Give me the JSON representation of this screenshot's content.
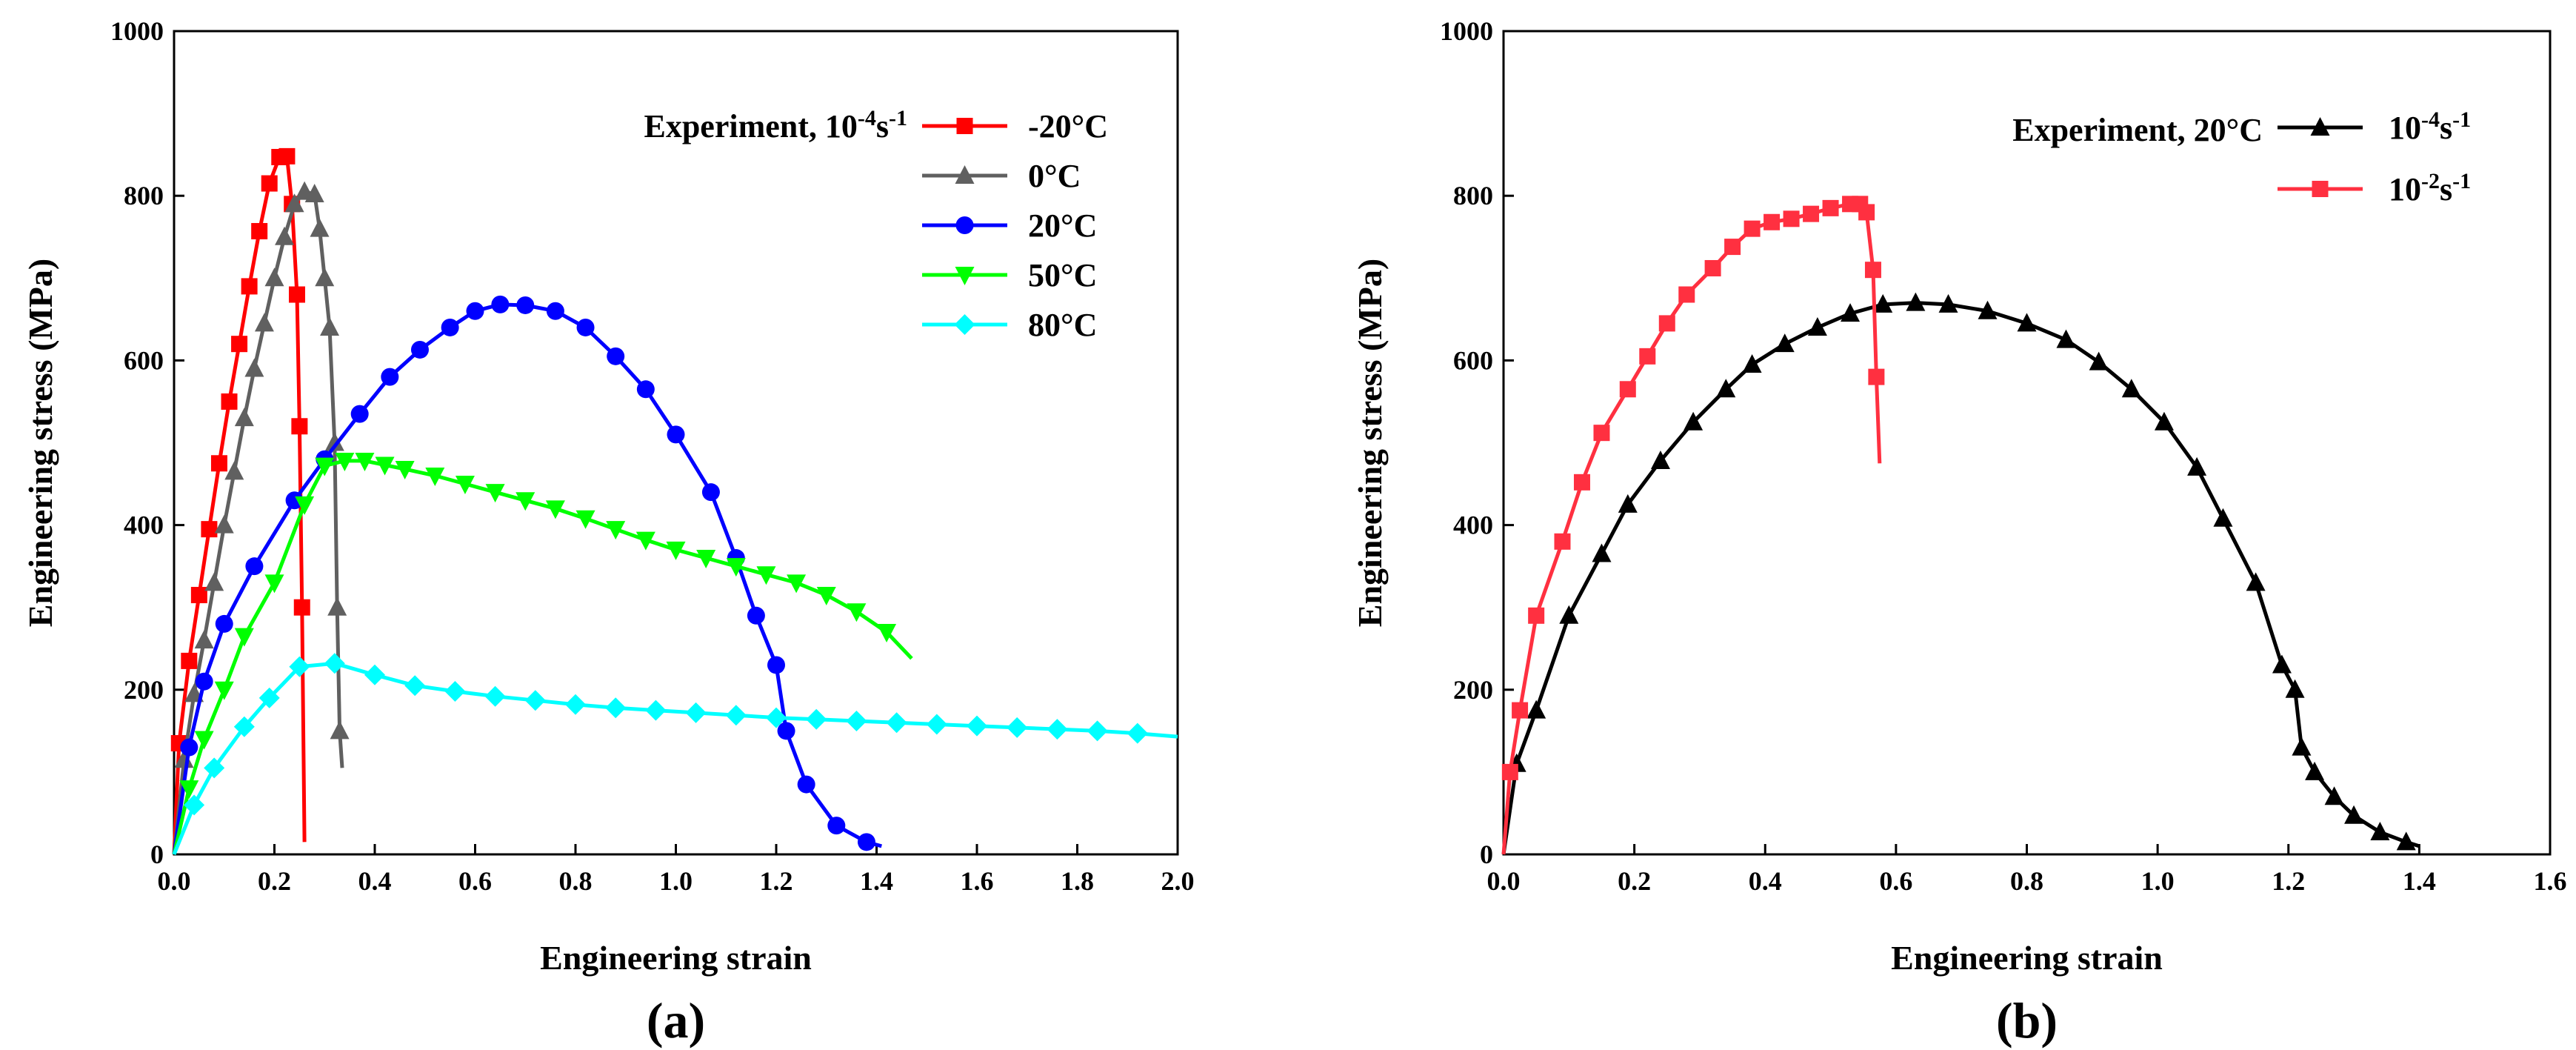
{
  "chart_data": [
    {
      "type": "line",
      "panel_label": "(a)",
      "xlabel": "Engineering strain",
      "ylabel": "Engineering stress (MPa)",
      "xlim": [
        0,
        2.0
      ],
      "ylim": [
        0,
        1000
      ],
      "xticks": [
        "0.0",
        "0.2",
        "0.4",
        "0.6",
        "0.8",
        "1.0",
        "1.2",
        "1.4",
        "1.6",
        "1.8",
        "2.0"
      ],
      "yticks": [
        "0",
        "200",
        "400",
        "600",
        "800",
        "1000"
      ],
      "legend_title_parts": [
        "Experiment, 10",
        "-4",
        "s",
        "-1"
      ],
      "legend_placement": "top-right",
      "series": [
        {
          "name": "-20°C",
          "color": "#ff0000",
          "marker": "square",
          "x": [
            0,
            0.01,
            0.03,
            0.05,
            0.07,
            0.09,
            0.11,
            0.13,
            0.15,
            0.17,
            0.19,
            0.21,
            0.225,
            0.235,
            0.245,
            0.25,
            0.255,
            0.26
          ],
          "y": [
            0,
            135,
            235,
            315,
            395,
            475,
            550,
            620,
            690,
            757,
            815,
            847,
            848,
            790,
            680,
            520,
            300,
            15
          ]
        },
        {
          "name": "0°C",
          "color": "#606060",
          "marker": "triangle-up",
          "x": [
            0,
            0.02,
            0.04,
            0.06,
            0.08,
            0.1,
            0.12,
            0.14,
            0.16,
            0.18,
            0.2,
            0.22,
            0.24,
            0.26,
            0.28,
            0.29,
            0.3,
            0.31,
            0.32,
            0.325,
            0.33,
            0.335
          ],
          "y": [
            0,
            115,
            195,
            260,
            330,
            400,
            465,
            530,
            590,
            645,
            700,
            750,
            790,
            805,
            802,
            760,
            700,
            640,
            500,
            300,
            150,
            105
          ]
        },
        {
          "name": "20°C",
          "color": "#0000ff",
          "marker": "circle",
          "x": [
            0,
            0.03,
            0.06,
            0.1,
            0.16,
            0.24,
            0.3,
            0.37,
            0.43,
            0.49,
            0.55,
            0.6,
            0.65,
            0.7,
            0.76,
            0.82,
            0.88,
            0.94,
            1.0,
            1.07,
            1.12,
            1.16,
            1.2,
            1.22,
            1.26,
            1.32,
            1.38,
            1.41
          ],
          "y": [
            0,
            130,
            210,
            280,
            350,
            430,
            480,
            535,
            580,
            613,
            640,
            660,
            668,
            667,
            660,
            640,
            605,
            565,
            510,
            440,
            360,
            290,
            230,
            150,
            85,
            35,
            15,
            10
          ]
        },
        {
          "name": "50°C",
          "color": "#00ff00",
          "marker": "triangle-down",
          "x": [
            0,
            0.03,
            0.06,
            0.1,
            0.14,
            0.2,
            0.26,
            0.3,
            0.34,
            0.38,
            0.42,
            0.46,
            0.52,
            0.58,
            0.64,
            0.7,
            0.76,
            0.82,
            0.88,
            0.94,
            1.0,
            1.06,
            1.12,
            1.18,
            1.24,
            1.3,
            1.36,
            1.42,
            1.47
          ],
          "y": [
            0,
            80,
            140,
            200,
            265,
            330,
            425,
            472,
            478,
            478,
            473,
            468,
            460,
            450,
            440,
            430,
            420,
            408,
            395,
            382,
            370,
            360,
            350,
            340,
            330,
            315,
            295,
            270,
            238
          ]
        },
        {
          "name": "80°C",
          "color": "#00ffff",
          "marker": "diamond",
          "x": [
            0,
            0.04,
            0.08,
            0.14,
            0.19,
            0.25,
            0.32,
            0.4,
            0.48,
            0.56,
            0.64,
            0.72,
            0.8,
            0.88,
            0.96,
            1.04,
            1.12,
            1.2,
            1.28,
            1.36,
            1.44,
            1.52,
            1.6,
            1.68,
            1.76,
            1.84,
            1.92,
            2.0
          ],
          "y": [
            0,
            60,
            105,
            155,
            190,
            228,
            232,
            218,
            205,
            198,
            192,
            187,
            182,
            178,
            175,
            172,
            169,
            166,
            164,
            162,
            160,
            158,
            156,
            154,
            152,
            150,
            147,
            143
          ]
        }
      ]
    },
    {
      "type": "line",
      "panel_label": "(b)",
      "xlabel": "Engineering strain",
      "ylabel": "Engineering stress (MPa)",
      "xlim": [
        0,
        1.6
      ],
      "ylim": [
        0,
        1000
      ],
      "xticks": [
        "0.0",
        "0.2",
        "0.4",
        "0.6",
        "0.8",
        "1.0",
        "1.2",
        "1.4",
        "1.6"
      ],
      "yticks": [
        "0",
        "200",
        "400",
        "600",
        "800",
        "1000"
      ],
      "legend_title": "Experiment, 20°C",
      "legend_placement": "top-right",
      "series": [
        {
          "name_parts": [
            "10",
            "-4",
            "s",
            "-1"
          ],
          "color": "#000000",
          "marker": "triangle-up",
          "x": [
            0,
            0.02,
            0.05,
            0.1,
            0.15,
            0.19,
            0.24,
            0.29,
            0.34,
            0.38,
            0.43,
            0.48,
            0.53,
            0.58,
            0.63,
            0.68,
            0.74,
            0.8,
            0.86,
            0.91,
            0.96,
            1.01,
            1.06,
            1.1,
            1.15,
            1.19,
            1.21,
            1.22,
            1.24,
            1.27,
            1.3,
            1.34,
            1.38,
            1.4
          ],
          "y": [
            0,
            110,
            175,
            290,
            365,
            425,
            478,
            525,
            565,
            595,
            620,
            640,
            657,
            668,
            670,
            668,
            660,
            645,
            625,
            598,
            565,
            525,
            470,
            408,
            330,
            230,
            200,
            130,
            100,
            70,
            47,
            27,
            15,
            10
          ]
        },
        {
          "name_parts": [
            "10",
            "-2",
            "s",
            "-1"
          ],
          "color": "#ff3040",
          "marker": "square",
          "x": [
            0,
            0.01,
            0.025,
            0.05,
            0.09,
            0.12,
            0.15,
            0.19,
            0.22,
            0.25,
            0.28,
            0.32,
            0.35,
            0.38,
            0.41,
            0.44,
            0.47,
            0.5,
            0.53,
            0.545,
            0.555,
            0.565,
            0.57,
            0.575
          ],
          "y": [
            0,
            100,
            175,
            290,
            380,
            452,
            512,
            565,
            605,
            645,
            680,
            712,
            738,
            760,
            768,
            772,
            778,
            785,
            790,
            790,
            780,
            710,
            580,
            475
          ]
        }
      ]
    }
  ]
}
